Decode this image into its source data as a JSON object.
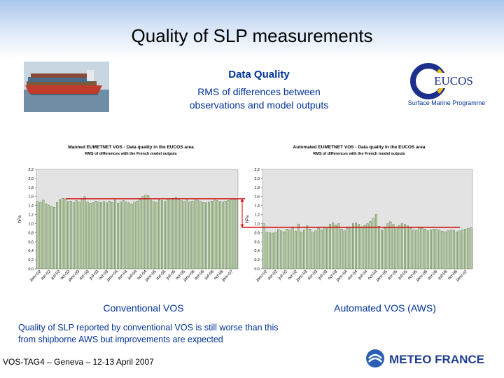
{
  "slide": {
    "title": "Quality of SLP measurements",
    "heading": "Data Quality",
    "subtitle_line1": "RMS of differences between",
    "subtitle_line2": "observations and model outputs",
    "eucos_logo_text": "EUCOS",
    "eucos_caption": "Surface Marine Programme",
    "caption_left": "Conventional VOS",
    "caption_right": "Automated VOS (AWS)",
    "note_line1": "Quality of SLP reported by conventional VOS is still worse than this",
    "note_line2": "from shipborne AWS but improvements are expected",
    "footer": "VOS-TAG4 – Geneva – 12-13 April 2007",
    "meteo_logo_text": "METEO FRANCE",
    "colors": {
      "bar": "#b9d2a5",
      "bar_edge": "#3d5a2c",
      "reference_line": "#cc0000",
      "plot_bg": "#e3e3e3",
      "text_blue": "#003399"
    }
  },
  "chart_data": [
    {
      "type": "bar",
      "title": "Manned EUMETNET VOS - Data quality in the EUCOS area",
      "subtitle": "RMS of differences with the French model outputs",
      "ylabel": "hPa",
      "ylim": [
        0,
        2.2
      ],
      "yticks": [
        "2,2",
        "2,0",
        "1,8",
        "1,6",
        "1,4",
        "1,2",
        "1,0",
        "0,8",
        "0,6",
        "0,4",
        "0,2",
        "0,0"
      ],
      "xtick_labels": [
        "janv-02",
        "avr-02",
        "juil-02",
        "oct-02",
        "janv-03",
        "avr-03",
        "juil-03",
        "oct-03",
        "janv-04",
        "avr-04",
        "juil-04",
        "oct-04",
        "janv-05",
        "avr-05",
        "juil-05",
        "oct-05",
        "janv-06",
        "avr-06",
        "juil-06",
        "oct-06",
        "janv-07"
      ],
      "reference_level": 1.55,
      "values": [
        1.49,
        1.47,
        1.52,
        1.44,
        1.41,
        1.38,
        1.36,
        1.47,
        1.53,
        1.56,
        1.55,
        1.49,
        1.5,
        1.47,
        1.51,
        1.48,
        1.55,
        1.6,
        1.48,
        1.45,
        1.46,
        1.5,
        1.48,
        1.47,
        1.49,
        1.46,
        1.5,
        1.47,
        1.52,
        1.45,
        1.48,
        1.51,
        1.48,
        1.46,
        1.44,
        1.48,
        1.5,
        1.54,
        1.6,
        1.63,
        1.62,
        1.52,
        1.49,
        1.47,
        1.53,
        1.51,
        1.49,
        1.53,
        1.55,
        1.56,
        1.58,
        1.54,
        1.51,
        1.49,
        1.52,
        1.48,
        1.5,
        1.55,
        1.52,
        1.49,
        1.47,
        1.46,
        1.48,
        1.5,
        1.52,
        1.51,
        1.49,
        1.48,
        1.5,
        1.51,
        1.53,
        1.54,
        1.55
      ]
    },
    {
      "type": "bar",
      "title": "Automated EUMETNET VOS - Data quality in the EUCOS area",
      "subtitle": "RMS of differences with the French model outputs",
      "ylabel": "hPa",
      "ylim": [
        0,
        2.2
      ],
      "yticks": [
        "2,2",
        "2,0",
        "1,8",
        "1,6",
        "1,4",
        "1,2",
        "1,0",
        "0,8",
        "0,6",
        "0,4",
        "0,2",
        "0,0"
      ],
      "xtick_labels": [
        "janv-02",
        "avr-02",
        "juil-02",
        "oct-02",
        "janv-03",
        "avr-03",
        "juil-03",
        "oct-03",
        "janv-04",
        "avr-04",
        "juil-04",
        "oct-04",
        "janv-05",
        "avr-05",
        "juil-05",
        "oct-05",
        "janv-06",
        "avr-06",
        "juil-06",
        "oct-06",
        "janv-07"
      ],
      "reference_level": 0.92,
      "values": [
        1.0,
        0.81,
        0.8,
        0.79,
        0.81,
        0.87,
        0.84,
        0.82,
        0.88,
        0.86,
        0.9,
        0.83,
        0.99,
        0.82,
        0.86,
        0.95,
        0.88,
        0.81,
        0.84,
        0.9,
        0.86,
        0.92,
        0.89,
        0.98,
        1.02,
        0.97,
        1.0,
        0.88,
        0.84,
        0.9,
        0.92,
        1.0,
        1.02,
        0.98,
        0.93,
        0.96,
        1.0,
        1.05,
        1.12,
        1.2,
        0.94,
        0.86,
        0.9,
        1.0,
        1.04,
        0.98,
        0.92,
        0.96,
        1.0,
        0.98,
        0.95,
        0.9,
        0.86,
        0.85,
        0.92,
        0.9,
        0.88,
        0.84,
        0.86,
        0.88,
        0.87,
        0.86,
        0.83,
        0.82,
        0.84,
        0.86,
        0.85,
        0.82,
        0.84,
        0.86,
        0.88,
        0.9,
        0.91
      ]
    }
  ]
}
